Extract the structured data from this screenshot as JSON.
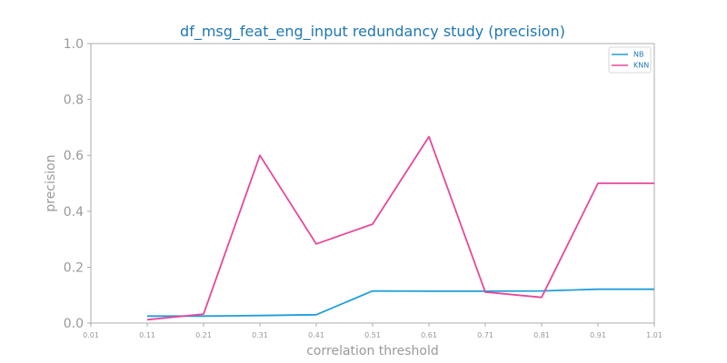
{
  "chart_data": {
    "type": "line",
    "title": "df_msg_feat_eng_input redundancy study (precision)",
    "xlabel": "correlation threshold",
    "ylabel": "precision",
    "x_ticks": [
      "0.01",
      "0.11",
      "0.21",
      "0.31",
      "0.41",
      "0.51",
      "0.61",
      "0.71",
      "0.81",
      "0.91",
      "1.01"
    ],
    "y_ticks": [
      "0.0",
      "0.2",
      "0.4",
      "0.6",
      "0.8",
      "1.0"
    ],
    "xlim": [
      0.01,
      1.01
    ],
    "ylim": [
      0.0,
      1.0
    ],
    "grid": false,
    "legend_position": "top-right",
    "x": [
      0.11,
      0.21,
      0.31,
      0.41,
      0.51,
      0.61,
      0.71,
      0.81,
      0.91,
      1.01
    ],
    "series": [
      {
        "name": "NB",
        "color": "#1f9ed8",
        "values": [
          0.025,
          0.025,
          0.027,
          0.03,
          0.115,
          0.114,
          0.114,
          0.115,
          0.121,
          0.121
        ]
      },
      {
        "name": "KNN",
        "color": "#e6489a",
        "values": [
          0.012,
          0.032,
          0.6,
          0.283,
          0.354,
          0.667,
          0.111,
          0.092,
          0.5,
          0.5
        ]
      }
    ]
  }
}
